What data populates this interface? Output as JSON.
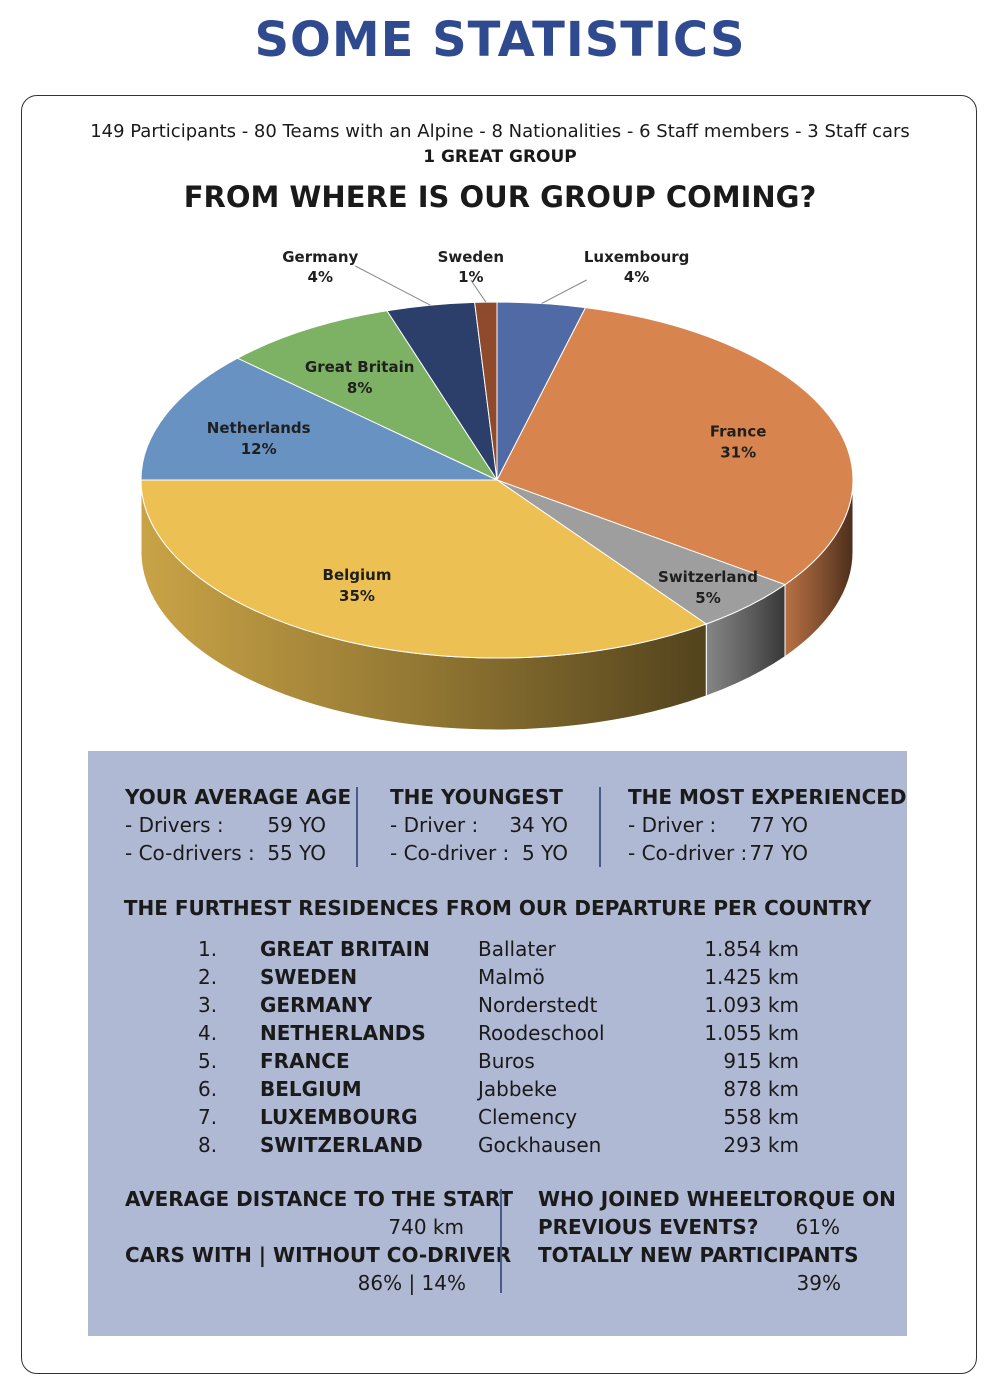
{
  "page_title": "SOME STATISTICS",
  "summary": "149 Participants - 80 Teams with an Alpine - 8 Nationalities - 6 Staff members - 3 Staff cars",
  "group_line": "1 GREAT GROUP",
  "chart_data": {
    "type": "pie",
    "title": "FROM WHERE IS OUR GROUP COMING?",
    "three_d": true,
    "slices": [
      {
        "name": "Luxembourg",
        "label": "4%",
        "value": 4,
        "color": "#4f6aa5"
      },
      {
        "name": "France",
        "label": "31%",
        "value": 31,
        "color": "#d8844f"
      },
      {
        "name": "Switzerland",
        "label": "5%",
        "value": 5,
        "color": "#9e9e9e"
      },
      {
        "name": "Belgium",
        "label": "35%",
        "value": 35,
        "color": "#ecc052"
      },
      {
        "name": "Netherlands",
        "label": "12%",
        "value": 12,
        "color": "#6792c2"
      },
      {
        "name": "Great Britain",
        "label": "8%",
        "value": 8,
        "color": "#7db163"
      },
      {
        "name": "Germany",
        "label": "4%",
        "value": 4,
        "color": "#2c3f6a"
      },
      {
        "name": "Sweden",
        "label": "1%",
        "value": 1,
        "color": "#8e4a2a"
      }
    ]
  },
  "age": {
    "average": {
      "title": "YOUR AVERAGE AGE",
      "rows": [
        {
          "label": "- Drivers :",
          "value": "59 YO"
        },
        {
          "label": "- Co-drivers :",
          "value": "55 YO"
        }
      ]
    },
    "youngest": {
      "title": "THE YOUNGEST",
      "rows": [
        {
          "label": "- Driver :",
          "value": "34 YO"
        },
        {
          "label": "- Co-driver :",
          "value": "5 YO"
        }
      ]
    },
    "experienced": {
      "title": "THE MOST EXPERIENCED",
      "rows": [
        {
          "label": "- Driver :",
          "value": "77 YO"
        },
        {
          "label": "- Co-driver :",
          "value": "77 YO"
        }
      ]
    }
  },
  "residences": {
    "title": "THE FURTHEST RESIDENCES FROM OUR DEPARTURE PER COUNTRY",
    "rows": [
      {
        "rank": "1.",
        "country": "GREAT BRITAIN",
        "town": "Ballater",
        "distance": "1.854 km"
      },
      {
        "rank": "2.",
        "country": "SWEDEN",
        "town": "Malmö",
        "distance": "1.425 km"
      },
      {
        "rank": "3.",
        "country": "GERMANY",
        "town": "Norderstedt",
        "distance": "1.093 km"
      },
      {
        "rank": "4.",
        "country": "NETHERLANDS",
        "town": "Roodeschool",
        "distance": "1.055 km"
      },
      {
        "rank": "5.",
        "country": "FRANCE",
        "town": "Buros",
        "distance": "915 km"
      },
      {
        "rank": "6.",
        "country": "BELGIUM",
        "town": "Jabbeke",
        "distance": "878 km"
      },
      {
        "rank": "7.",
        "country": "LUXEMBOURG",
        "town": "Clemency",
        "distance": "558 km"
      },
      {
        "rank": "8.",
        "country": "SWITZERLAND",
        "town": "Gockhausen",
        "distance": "293 km"
      }
    ]
  },
  "bottom": {
    "avg_distance_label": "AVERAGE DISTANCE TO THE START",
    "avg_distance_value": "740 km",
    "codriver_label": "CARS WITH | WITHOUT CO-DRIVER",
    "codriver_value": "86% | 14%",
    "joined_label_1": "WHO JOINED WHEELTORQUE ON",
    "joined_label_2": "PREVIOUS EVENTS?",
    "joined_value": "61%",
    "new_label": "TOTALLY NEW PARTICIPANTS",
    "new_value": "39%"
  }
}
